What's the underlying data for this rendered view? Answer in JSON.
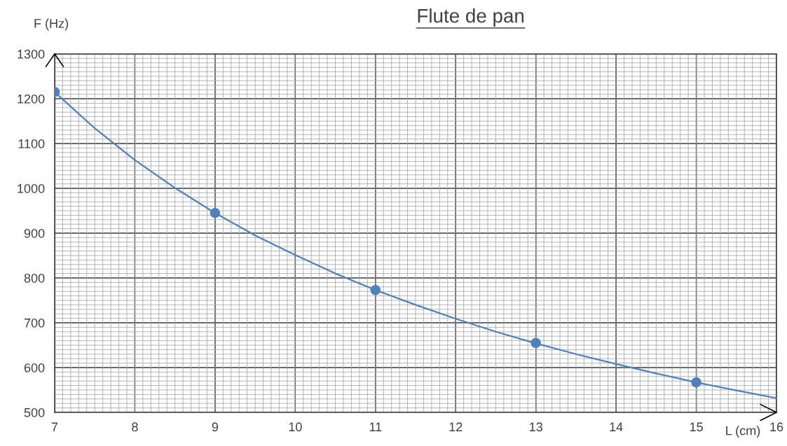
{
  "chart_data": {
    "type": "scatter",
    "title": "Flute de pan",
    "xlabel": "L (cm)",
    "ylabel": "F (Hz)",
    "xlim": [
      7,
      16
    ],
    "xticks": [
      7,
      8,
      9,
      10,
      11,
      12,
      13,
      14,
      15,
      16
    ],
    "ylim": [
      500,
      1300
    ],
    "yticks": [
      500,
      600,
      700,
      800,
      900,
      1000,
      1100,
      1200,
      1300
    ],
    "grid": true,
    "marker": "circle",
    "series": [
      {
        "color": "#4f81bd",
        "x": [
          7,
          9,
          11,
          13,
          15
        ],
        "values": [
          1215,
          945,
          773,
          655,
          567
        ]
      },
      {
        "type": "line",
        "color": "#4f81bd",
        "marker": "none",
        "line_style": "solid",
        "x": [
          7,
          7.5,
          8,
          8.5,
          9,
          9.5,
          10,
          10.5,
          11,
          11.5,
          12,
          12.5,
          13,
          13.5,
          14,
          14.5,
          15,
          15.5,
          16
        ],
        "values": [
          1215,
          1134,
          1063,
          1001,
          945,
          895,
          851,
          810,
          773,
          740,
          709,
          680,
          654,
          630,
          608,
          587,
          567,
          549,
          532
        ]
      }
    ]
  }
}
